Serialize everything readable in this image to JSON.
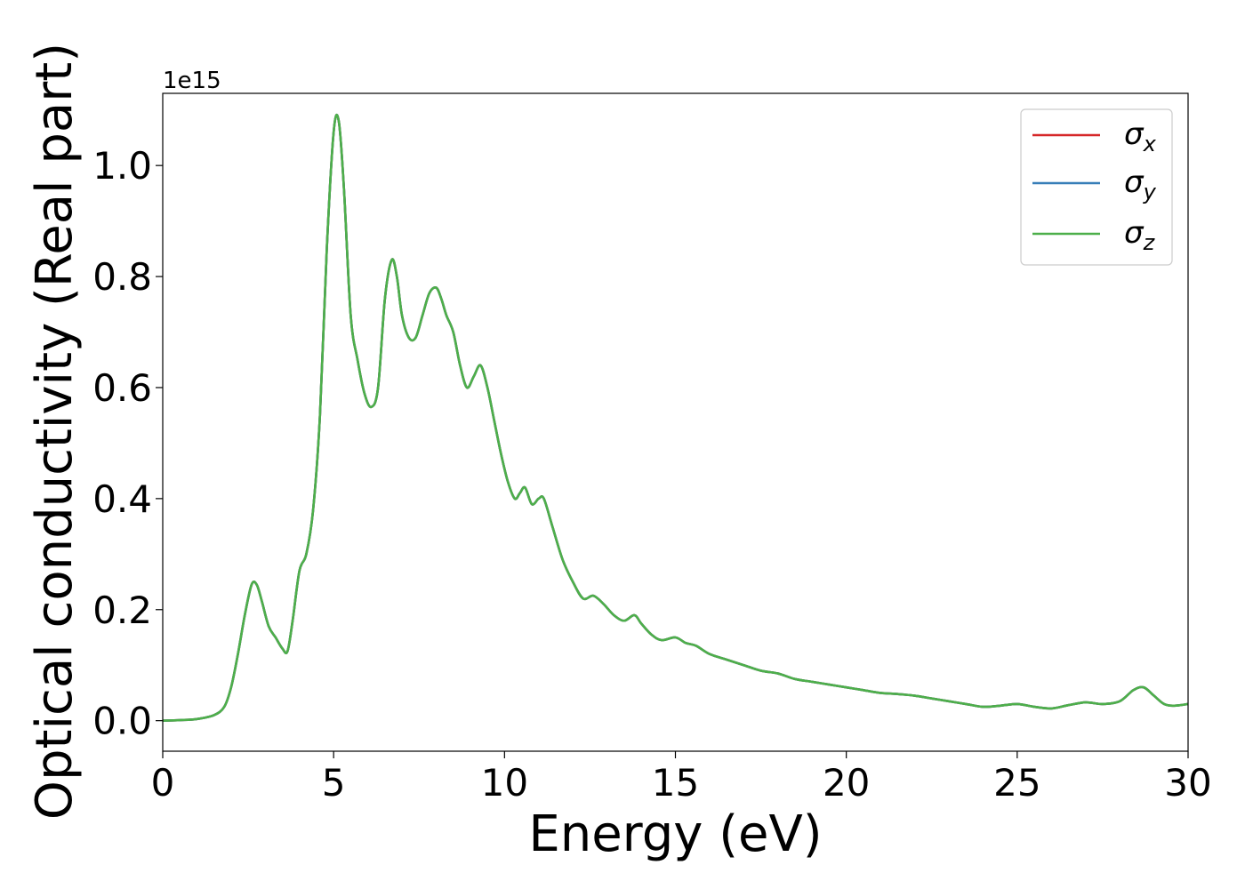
{
  "chart_data": {
    "type": "line",
    "xlabel": "Energy (eV)",
    "ylabel": "Optical conductivity (Real part)",
    "y_offset_label": "1e15",
    "y_scale": 1000000000000000.0,
    "xlim": [
      0,
      30
    ],
    "ylim": [
      -0.055,
      1.13
    ],
    "x_ticks": [
      0,
      5,
      10,
      15,
      20,
      25,
      30
    ],
    "x_tick_labels": [
      "0",
      "5",
      "10",
      "15",
      "20",
      "25",
      "30"
    ],
    "y_ticks": [
      0.0,
      0.2,
      0.4,
      0.6,
      0.8,
      1.0
    ],
    "y_tick_labels": [
      "0.0",
      "0.2",
      "0.4",
      "0.6",
      "0.8",
      "1.0"
    ],
    "grid": false,
    "legend_position": "top-right",
    "series": [
      {
        "name": "σx",
        "symbol": "σ",
        "subscript": "x",
        "color": "#d62728",
        "x": [
          0,
          0.5,
          1.0,
          1.5,
          1.8,
          2.0,
          2.2,
          2.4,
          2.6,
          2.75,
          2.9,
          3.1,
          3.3,
          3.5,
          3.65,
          3.8,
          4.0,
          4.2,
          4.4,
          4.6,
          4.8,
          5.0,
          5.15,
          5.3,
          5.5,
          5.7,
          5.9,
          6.1,
          6.3,
          6.5,
          6.7,
          6.85,
          7.0,
          7.2,
          7.4,
          7.6,
          7.8,
          8.0,
          8.15,
          8.3,
          8.5,
          8.7,
          8.9,
          9.1,
          9.3,
          9.5,
          9.7,
          9.9,
          10.1,
          10.3,
          10.45,
          10.6,
          10.8,
          11.0,
          11.15,
          11.4,
          11.7,
          12.0,
          12.3,
          12.6,
          12.9,
          13.2,
          13.5,
          13.8,
          14.0,
          14.3,
          14.6,
          15.0,
          15.3,
          15.6,
          16.0,
          16.5,
          17.0,
          17.5,
          18.0,
          18.5,
          19.0,
          19.5,
          20.0,
          20.5,
          21.0,
          21.5,
          22.0,
          22.5,
          23.0,
          23.5,
          24.0,
          24.5,
          25.0,
          25.5,
          26.0,
          26.5,
          27.0,
          27.5,
          28.0,
          28.4,
          28.7,
          29.0,
          29.3,
          29.6,
          30.0
        ],
        "y": [
          0.0,
          0.001,
          0.003,
          0.01,
          0.025,
          0.06,
          0.12,
          0.19,
          0.245,
          0.245,
          0.215,
          0.17,
          0.15,
          0.13,
          0.125,
          0.18,
          0.27,
          0.3,
          0.38,
          0.55,
          0.85,
          1.06,
          1.08,
          0.96,
          0.73,
          0.65,
          0.59,
          0.565,
          0.6,
          0.76,
          0.83,
          0.8,
          0.73,
          0.69,
          0.69,
          0.73,
          0.77,
          0.78,
          0.76,
          0.73,
          0.7,
          0.64,
          0.6,
          0.62,
          0.64,
          0.6,
          0.54,
          0.48,
          0.43,
          0.4,
          0.41,
          0.42,
          0.39,
          0.4,
          0.4,
          0.35,
          0.29,
          0.25,
          0.22,
          0.225,
          0.21,
          0.19,
          0.18,
          0.19,
          0.175,
          0.155,
          0.145,
          0.15,
          0.14,
          0.135,
          0.12,
          0.11,
          0.1,
          0.09,
          0.085,
          0.075,
          0.07,
          0.065,
          0.06,
          0.055,
          0.05,
          0.048,
          0.045,
          0.04,
          0.035,
          0.03,
          0.025,
          0.027,
          0.03,
          0.025,
          0.022,
          0.028,
          0.033,
          0.03,
          0.035,
          0.055,
          0.06,
          0.045,
          0.03,
          0.027,
          0.03
        ]
      },
      {
        "name": "σy",
        "symbol": "σ",
        "subscript": "y",
        "color": "#377eb8",
        "x": [
          0,
          0.5,
          1.0,
          1.5,
          1.8,
          2.0,
          2.2,
          2.4,
          2.6,
          2.75,
          2.9,
          3.1,
          3.3,
          3.5,
          3.65,
          3.8,
          4.0,
          4.2,
          4.4,
          4.6,
          4.8,
          5.0,
          5.15,
          5.3,
          5.5,
          5.7,
          5.9,
          6.1,
          6.3,
          6.5,
          6.7,
          6.85,
          7.0,
          7.2,
          7.4,
          7.6,
          7.8,
          8.0,
          8.15,
          8.3,
          8.5,
          8.7,
          8.9,
          9.1,
          9.3,
          9.5,
          9.7,
          9.9,
          10.1,
          10.3,
          10.45,
          10.6,
          10.8,
          11.0,
          11.15,
          11.4,
          11.7,
          12.0,
          12.3,
          12.6,
          12.9,
          13.2,
          13.5,
          13.8,
          14.0,
          14.3,
          14.6,
          15.0,
          15.3,
          15.6,
          16.0,
          16.5,
          17.0,
          17.5,
          18.0,
          18.5,
          19.0,
          19.5,
          20.0,
          20.5,
          21.0,
          21.5,
          22.0,
          22.5,
          23.0,
          23.5,
          24.0,
          24.5,
          25.0,
          25.5,
          26.0,
          26.5,
          27.0,
          27.5,
          28.0,
          28.4,
          28.7,
          29.0,
          29.3,
          29.6,
          30.0
        ],
        "y": [
          0.0,
          0.001,
          0.003,
          0.01,
          0.025,
          0.06,
          0.12,
          0.19,
          0.245,
          0.245,
          0.215,
          0.17,
          0.15,
          0.13,
          0.125,
          0.18,
          0.27,
          0.3,
          0.38,
          0.55,
          0.85,
          1.06,
          1.08,
          0.96,
          0.73,
          0.65,
          0.59,
          0.565,
          0.6,
          0.76,
          0.83,
          0.8,
          0.73,
          0.69,
          0.69,
          0.73,
          0.77,
          0.78,
          0.76,
          0.73,
          0.7,
          0.64,
          0.6,
          0.62,
          0.64,
          0.6,
          0.54,
          0.48,
          0.43,
          0.4,
          0.41,
          0.42,
          0.39,
          0.4,
          0.4,
          0.35,
          0.29,
          0.25,
          0.22,
          0.225,
          0.21,
          0.19,
          0.18,
          0.19,
          0.175,
          0.155,
          0.145,
          0.15,
          0.14,
          0.135,
          0.12,
          0.11,
          0.1,
          0.09,
          0.085,
          0.075,
          0.07,
          0.065,
          0.06,
          0.055,
          0.05,
          0.048,
          0.045,
          0.04,
          0.035,
          0.03,
          0.025,
          0.027,
          0.03,
          0.025,
          0.022,
          0.028,
          0.033,
          0.03,
          0.035,
          0.055,
          0.06,
          0.045,
          0.03,
          0.027,
          0.03
        ]
      },
      {
        "name": "σz",
        "symbol": "σ",
        "subscript": "z",
        "color": "#4daf4a",
        "x": [
          0,
          0.5,
          1.0,
          1.5,
          1.8,
          2.0,
          2.2,
          2.4,
          2.6,
          2.75,
          2.9,
          3.1,
          3.3,
          3.5,
          3.65,
          3.8,
          4.0,
          4.2,
          4.4,
          4.6,
          4.8,
          5.0,
          5.15,
          5.3,
          5.5,
          5.7,
          5.9,
          6.1,
          6.3,
          6.5,
          6.7,
          6.85,
          7.0,
          7.2,
          7.4,
          7.6,
          7.8,
          8.0,
          8.15,
          8.3,
          8.5,
          8.7,
          8.9,
          9.1,
          9.3,
          9.5,
          9.7,
          9.9,
          10.1,
          10.3,
          10.45,
          10.6,
          10.8,
          11.0,
          11.15,
          11.4,
          11.7,
          12.0,
          12.3,
          12.6,
          12.9,
          13.2,
          13.5,
          13.8,
          14.0,
          14.3,
          14.6,
          15.0,
          15.3,
          15.6,
          16.0,
          16.5,
          17.0,
          17.5,
          18.0,
          18.5,
          19.0,
          19.5,
          20.0,
          20.5,
          21.0,
          21.5,
          22.0,
          22.5,
          23.0,
          23.5,
          24.0,
          24.5,
          25.0,
          25.5,
          26.0,
          26.5,
          27.0,
          27.5,
          28.0,
          28.4,
          28.7,
          29.0,
          29.3,
          29.6,
          30.0
        ],
        "y": [
          0.0,
          0.001,
          0.003,
          0.01,
          0.025,
          0.06,
          0.12,
          0.19,
          0.245,
          0.245,
          0.215,
          0.17,
          0.15,
          0.13,
          0.125,
          0.18,
          0.27,
          0.3,
          0.38,
          0.55,
          0.85,
          1.06,
          1.08,
          0.96,
          0.73,
          0.65,
          0.59,
          0.565,
          0.6,
          0.76,
          0.83,
          0.8,
          0.73,
          0.69,
          0.69,
          0.73,
          0.77,
          0.78,
          0.76,
          0.73,
          0.7,
          0.64,
          0.6,
          0.62,
          0.64,
          0.6,
          0.54,
          0.48,
          0.43,
          0.4,
          0.41,
          0.42,
          0.39,
          0.4,
          0.4,
          0.35,
          0.29,
          0.25,
          0.22,
          0.225,
          0.21,
          0.19,
          0.18,
          0.19,
          0.175,
          0.155,
          0.145,
          0.15,
          0.14,
          0.135,
          0.12,
          0.11,
          0.1,
          0.09,
          0.085,
          0.075,
          0.07,
          0.065,
          0.06,
          0.055,
          0.05,
          0.048,
          0.045,
          0.04,
          0.035,
          0.03,
          0.025,
          0.027,
          0.03,
          0.025,
          0.022,
          0.028,
          0.033,
          0.03,
          0.035,
          0.055,
          0.06,
          0.045,
          0.03,
          0.027,
          0.03
        ]
      }
    ]
  }
}
